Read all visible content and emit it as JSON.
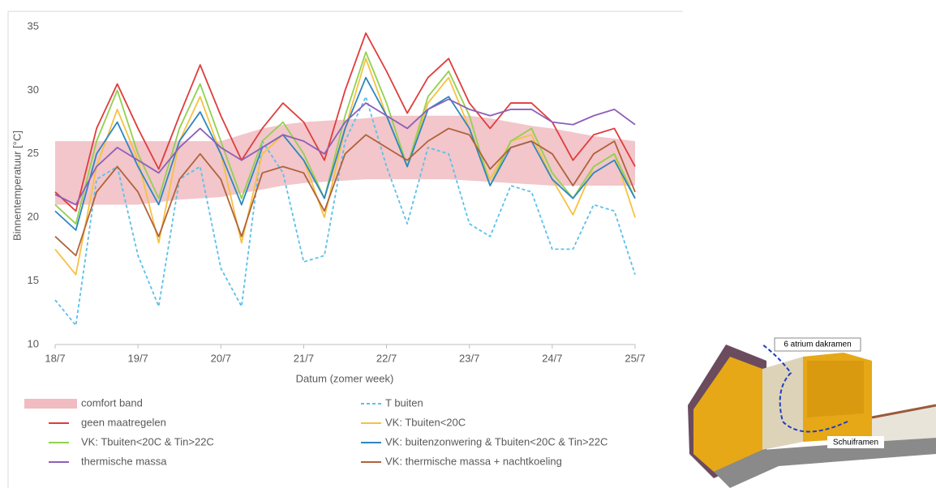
{
  "chart_data": {
    "type": "line",
    "ylabel": "Binnentemperatuur [°C]",
    "xlabel": "Datum (zomer week)",
    "x": [
      0,
      0.25,
      0.5,
      0.75,
      1,
      1.25,
      1.5,
      1.75,
      2,
      2.25,
      2.5,
      2.75,
      3,
      3.25,
      3.5,
      3.75,
      4,
      4.25,
      4.5,
      4.75,
      5,
      5.25,
      5.5,
      5.75,
      6,
      6.25,
      6.5,
      6.75,
      7
    ],
    "xlim": [
      0,
      7
    ],
    "xticks": [
      {
        "value": 0,
        "label": "18/7"
      },
      {
        "value": 1,
        "label": "19/7"
      },
      {
        "value": 2,
        "label": "20/7"
      },
      {
        "value": 3,
        "label": "21/7"
      },
      {
        "value": 4,
        "label": "22/7"
      },
      {
        "value": 5,
        "label": "23/7"
      },
      {
        "value": 6,
        "label": "24/7"
      },
      {
        "value": 7,
        "label": "25/7"
      }
    ],
    "ylim": [
      10,
      35
    ],
    "yticks": [
      10,
      15,
      20,
      25,
      30,
      35
    ],
    "grid": false,
    "series": [
      {
        "name": "comfort band",
        "color": "#f0bcc1",
        "kind": "band",
        "high": [
          26,
          26,
          26,
          26,
          26,
          26,
          26,
          26,
          26,
          26.5,
          27,
          27.3,
          27.5,
          27.6,
          27.7,
          27.8,
          28,
          28,
          28,
          28,
          28,
          27.8,
          27.5,
          27.2,
          27,
          26.7,
          26.4,
          26.2,
          26
        ],
        "low": [
          21,
          21,
          21,
          21,
          21,
          21.2,
          21.4,
          21.5,
          21.6,
          21.9,
          22.2,
          22.5,
          22.7,
          22.8,
          22.9,
          23,
          23,
          23,
          23,
          23,
          22.9,
          22.8,
          22.7,
          22.6,
          22.5,
          22.5,
          22.5,
          22.5,
          22.5
        ]
      },
      {
        "name": "T buiten",
        "color": "#5bc0eb",
        "dashed": true,
        "values": [
          13.5,
          11.5,
          23,
          24,
          17,
          13,
          23,
          24,
          16,
          13,
          26,
          23.5,
          16.5,
          17,
          26,
          29.5,
          24,
          19.5,
          25.5,
          25,
          19.5,
          18.5,
          22.5,
          22,
          17.5,
          17.5,
          21,
          20.5,
          15.5
        ]
      },
      {
        "name": "geen maatregelen",
        "color": "#e03c3c",
        "values": [
          22,
          20.5,
          27,
          30.5,
          27,
          23.8,
          28,
          32,
          28,
          24.5,
          27,
          29,
          27.5,
          24.5,
          30,
          34.5,
          31.5,
          28.2,
          31,
          32.5,
          29,
          27,
          29,
          29,
          27.5,
          24.5,
          26.5,
          27,
          24
        ]
      },
      {
        "name": "VK: Tbuiten<20C",
        "color": "#f5c242",
        "values": [
          17.5,
          15.5,
          24,
          28.5,
          24.5,
          18,
          26,
          29.5,
          25,
          18,
          25,
          26.5,
          24.5,
          20,
          27,
          32.5,
          28,
          24,
          29,
          31,
          27,
          23,
          26,
          26.5,
          23,
          20.2,
          24,
          25,
          20
        ]
      },
      {
        "name": "VK: Tbuiten<20C & Tin>22C",
        "color": "#92d050",
        "values": [
          21,
          19.5,
          26,
          30,
          25,
          21.5,
          27,
          30.5,
          26,
          21.5,
          26,
          27.5,
          25,
          21.5,
          28,
          33,
          29,
          24,
          29.5,
          31.5,
          28,
          22.5,
          26,
          27,
          23.5,
          21.5,
          24,
          25,
          21.5
        ]
      },
      {
        "name": "VK: buitenzonwering & Tbuiten<20C & Tin>22C",
        "color": "#2e86c1",
        "values": [
          20.5,
          19,
          25,
          27.5,
          24,
          21,
          26,
          28.3,
          25,
          21,
          25.5,
          26.5,
          24.5,
          21.5,
          27,
          31,
          28,
          24,
          28.5,
          29.5,
          27,
          22.5,
          25.5,
          26,
          23,
          21.5,
          23.5,
          24.5,
          21.5
        ]
      },
      {
        "name": "thermische massa",
        "color": "#8e5fb8",
        "values": [
          21.8,
          21,
          24,
          25.5,
          24.5,
          23.5,
          25.5,
          27,
          25.5,
          24.5,
          25.5,
          26.5,
          26,
          25,
          27.5,
          29,
          28,
          27,
          28.5,
          29.3,
          28.5,
          28,
          28.5,
          28.5,
          27.5,
          27.3,
          28,
          28.5,
          27.3
        ]
      },
      {
        "name": "VK: thermische massa + nachtkoeling",
        "color": "#b0623a",
        "values": [
          18.5,
          17,
          22,
          24,
          22,
          18.5,
          23,
          25,
          23,
          18.5,
          23.5,
          24,
          23.5,
          20.5,
          25,
          26.5,
          25.5,
          24.5,
          26,
          27,
          26.5,
          23.8,
          25.5,
          26,
          25,
          22.5,
          25,
          26,
          22
        ]
      }
    ]
  },
  "illustration": {
    "labels": [
      "6 atrium dakramen",
      "Schuiframen"
    ]
  }
}
